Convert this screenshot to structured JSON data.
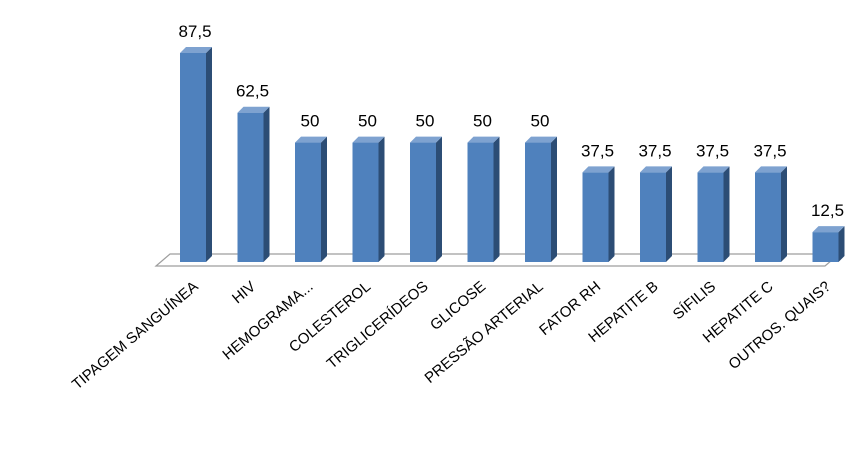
{
  "chart_data": {
    "type": "bar",
    "categories": [
      "TIPAGEM SANGUÍNEA",
      "HIV",
      "HEMOGRAMA...",
      "COLESTEROL",
      "TRIGLICERÍDEOS",
      "GLICOSE",
      "PRESSÃO ARTERIAL",
      "FATOR RH",
      "HEPATITE B",
      "SÍFILIS",
      "HEPATITE C",
      "OUTROS. QUAIS?"
    ],
    "values": [
      87.5,
      62.5,
      50,
      50,
      50,
      50,
      50,
      37.5,
      37.5,
      37.5,
      37.5,
      12.5
    ],
    "value_labels": [
      "87,5",
      "62,5",
      "50",
      "50",
      "50",
      "50",
      "50",
      "37,5",
      "37,5",
      "37,5",
      "37,5",
      "12,5"
    ],
    "ylim": [
      0,
      87.5
    ],
    "grid": false,
    "legend": "none",
    "colors": {
      "bar_front": "#4F81BD",
      "bar_side": "#2C4D75",
      "bar_top": "#7EA2D0",
      "floor": "#9E9E9E"
    }
  }
}
